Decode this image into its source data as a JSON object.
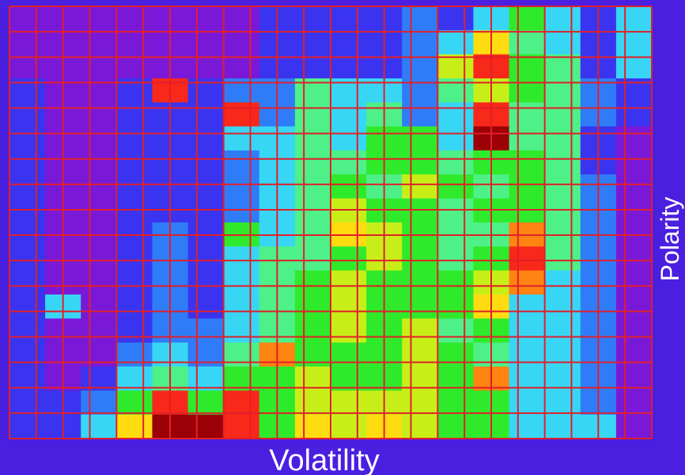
{
  "chart_data": {
    "type": "heatmap",
    "title": "",
    "xlabel": "Volatility",
    "ylabel": "Polarity",
    "grid": true,
    "legend": "none",
    "colors": {
      "background": "#4a1fe0",
      "grid_lines": "#e0202a",
      "scale": [
        "#7a18d8",
        "#3a34f0",
        "#2f7cf8",
        "#38d6f5",
        "#4ef088",
        "#2fea2a",
        "#c8ee18",
        "#ffdc10",
        "#ff8412",
        "#f8281a",
        "#9a0006"
      ]
    },
    "intensity_range": [
      0,
      10
    ],
    "columns": 18,
    "rows": 18,
    "values": [
      [
        0,
        0,
        0,
        0,
        0,
        0,
        0,
        1,
        1,
        1,
        1,
        2,
        1,
        3,
        5,
        3,
        1,
        3
      ],
      [
        0,
        0,
        0,
        0,
        0,
        0,
        0,
        1,
        1,
        1,
        1,
        2,
        3,
        7,
        4,
        3,
        1,
        3
      ],
      [
        0,
        0,
        0,
        0,
        0,
        0,
        0,
        1,
        1,
        1,
        1,
        2,
        6,
        9,
        5,
        4,
        1,
        3
      ],
      [
        1,
        0,
        0,
        1,
        9,
        1,
        2,
        2,
        4,
        3,
        3,
        2,
        4,
        6,
        5,
        4,
        2,
        1
      ],
      [
        1,
        0,
        0,
        1,
        1,
        1,
        9,
        2,
        4,
        3,
        4,
        2,
        3,
        9,
        4,
        4,
        2,
        1
      ],
      [
        1,
        0,
        0,
        1,
        1,
        1,
        3,
        3,
        4,
        3,
        5,
        5,
        3,
        10,
        4,
        4,
        1,
        0
      ],
      [
        1,
        0,
        0,
        1,
        1,
        1,
        2,
        3,
        4,
        4,
        5,
        5,
        4,
        5,
        5,
        4,
        1,
        0
      ],
      [
        1,
        0,
        0,
        1,
        1,
        1,
        2,
        3,
        4,
        5,
        4,
        6,
        5,
        4,
        5,
        4,
        2,
        0
      ],
      [
        1,
        0,
        0,
        1,
        1,
        1,
        2,
        3,
        4,
        6,
        5,
        5,
        4,
        5,
        5,
        4,
        2,
        0
      ],
      [
        1,
        0,
        0,
        1,
        2,
        1,
        5,
        3,
        4,
        7,
        6,
        5,
        4,
        4,
        8,
        4,
        2,
        0
      ],
      [
        1,
        0,
        0,
        1,
        2,
        1,
        3,
        4,
        4,
        5,
        6,
        5,
        4,
        5,
        9,
        4,
        2,
        0
      ],
      [
        1,
        0,
        0,
        1,
        2,
        1,
        3,
        4,
        5,
        6,
        5,
        5,
        5,
        6,
        8,
        3,
        2,
        0
      ],
      [
        1,
        3,
        0,
        1,
        2,
        1,
        3,
        4,
        5,
        6,
        5,
        5,
        5,
        7,
        3,
        3,
        2,
        0
      ],
      [
        1,
        0,
        0,
        1,
        2,
        2,
        3,
        4,
        5,
        6,
        5,
        6,
        4,
        5,
        3,
        3,
        2,
        0
      ],
      [
        1,
        0,
        0,
        2,
        3,
        2,
        4,
        8,
        5,
        5,
        5,
        6,
        5,
        4,
        3,
        3,
        2,
        0
      ],
      [
        1,
        0,
        1,
        3,
        4,
        3,
        5,
        5,
        6,
        5,
        5,
        6,
        5,
        8,
        3,
        3,
        2,
        0
      ],
      [
        1,
        1,
        2,
        5,
        9,
        5,
        9,
        5,
        6,
        6,
        6,
        6,
        5,
        5,
        3,
        3,
        2,
        0
      ],
      [
        1,
        1,
        3,
        7,
        10,
        10,
        9,
        5,
        7,
        6,
        7,
        6,
        5,
        5,
        3,
        3,
        3,
        0
      ]
    ]
  }
}
